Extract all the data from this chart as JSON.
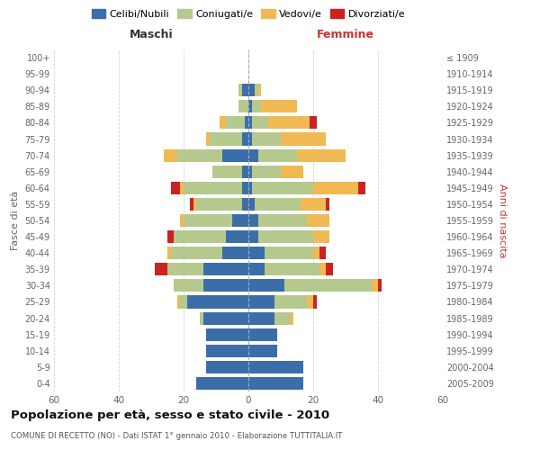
{
  "age_groups": [
    "0-4",
    "5-9",
    "10-14",
    "15-19",
    "20-24",
    "25-29",
    "30-34",
    "35-39",
    "40-44",
    "45-49",
    "50-54",
    "55-59",
    "60-64",
    "65-69",
    "70-74",
    "75-79",
    "80-84",
    "85-89",
    "90-94",
    "95-99",
    "100+"
  ],
  "birth_years": [
    "2005-2009",
    "2000-2004",
    "1995-1999",
    "1990-1994",
    "1985-1989",
    "1980-1984",
    "1975-1979",
    "1970-1974",
    "1965-1969",
    "1960-1964",
    "1955-1959",
    "1950-1954",
    "1945-1949",
    "1940-1944",
    "1935-1939",
    "1930-1934",
    "1925-1929",
    "1920-1924",
    "1915-1919",
    "1910-1914",
    "≤ 1909"
  ],
  "male": {
    "celibi": [
      16,
      13,
      13,
      13,
      14,
      19,
      14,
      14,
      8,
      7,
      5,
      2,
      2,
      2,
      8,
      2,
      1,
      0,
      2,
      0,
      0
    ],
    "coniugati": [
      0,
      0,
      0,
      0,
      1,
      2,
      9,
      11,
      16,
      16,
      15,
      14,
      18,
      9,
      14,
      10,
      6,
      3,
      1,
      0,
      0
    ],
    "vedovi": [
      0,
      0,
      0,
      0,
      0,
      1,
      0,
      0,
      1,
      0,
      1,
      1,
      1,
      0,
      4,
      1,
      2,
      0,
      0,
      0,
      0
    ],
    "divorziati": [
      0,
      0,
      0,
      0,
      0,
      0,
      0,
      4,
      0,
      2,
      0,
      1,
      3,
      0,
      0,
      0,
      0,
      0,
      0,
      0,
      0
    ]
  },
  "female": {
    "nubili": [
      17,
      17,
      9,
      9,
      8,
      8,
      11,
      5,
      5,
      3,
      3,
      2,
      1,
      1,
      3,
      1,
      1,
      1,
      2,
      0,
      0
    ],
    "coniugate": [
      0,
      0,
      0,
      0,
      5,
      10,
      27,
      17,
      15,
      17,
      15,
      14,
      19,
      9,
      12,
      9,
      5,
      3,
      1,
      0,
      0
    ],
    "vedove": [
      0,
      0,
      0,
      0,
      1,
      2,
      2,
      2,
      2,
      5,
      7,
      8,
      14,
      7,
      15,
      14,
      13,
      11,
      1,
      0,
      0
    ],
    "divorziate": [
      0,
      0,
      0,
      0,
      0,
      1,
      1,
      2,
      2,
      0,
      0,
      1,
      2,
      0,
      0,
      0,
      2,
      0,
      0,
      0,
      0
    ]
  },
  "colors": {
    "celibi": "#3b6ea8",
    "coniugati": "#b5c98e",
    "vedovi": "#f0b954",
    "divorziati": "#cc2222"
  },
  "title": "Popolazione per età, sesso e stato civile - 2010",
  "subtitle": "COMUNE DI RECETTO (NO) - Dati ISTAT 1° gennaio 2010 - Elaborazione TUTTITALIA.IT",
  "xlabel_left": "Maschi",
  "xlabel_right": "Femmine",
  "ylabel_left": "Fasce di età",
  "ylabel_right": "Anni di nascita",
  "xlim": 60,
  "background_color": "#ffffff",
  "grid_color": "#cccccc"
}
